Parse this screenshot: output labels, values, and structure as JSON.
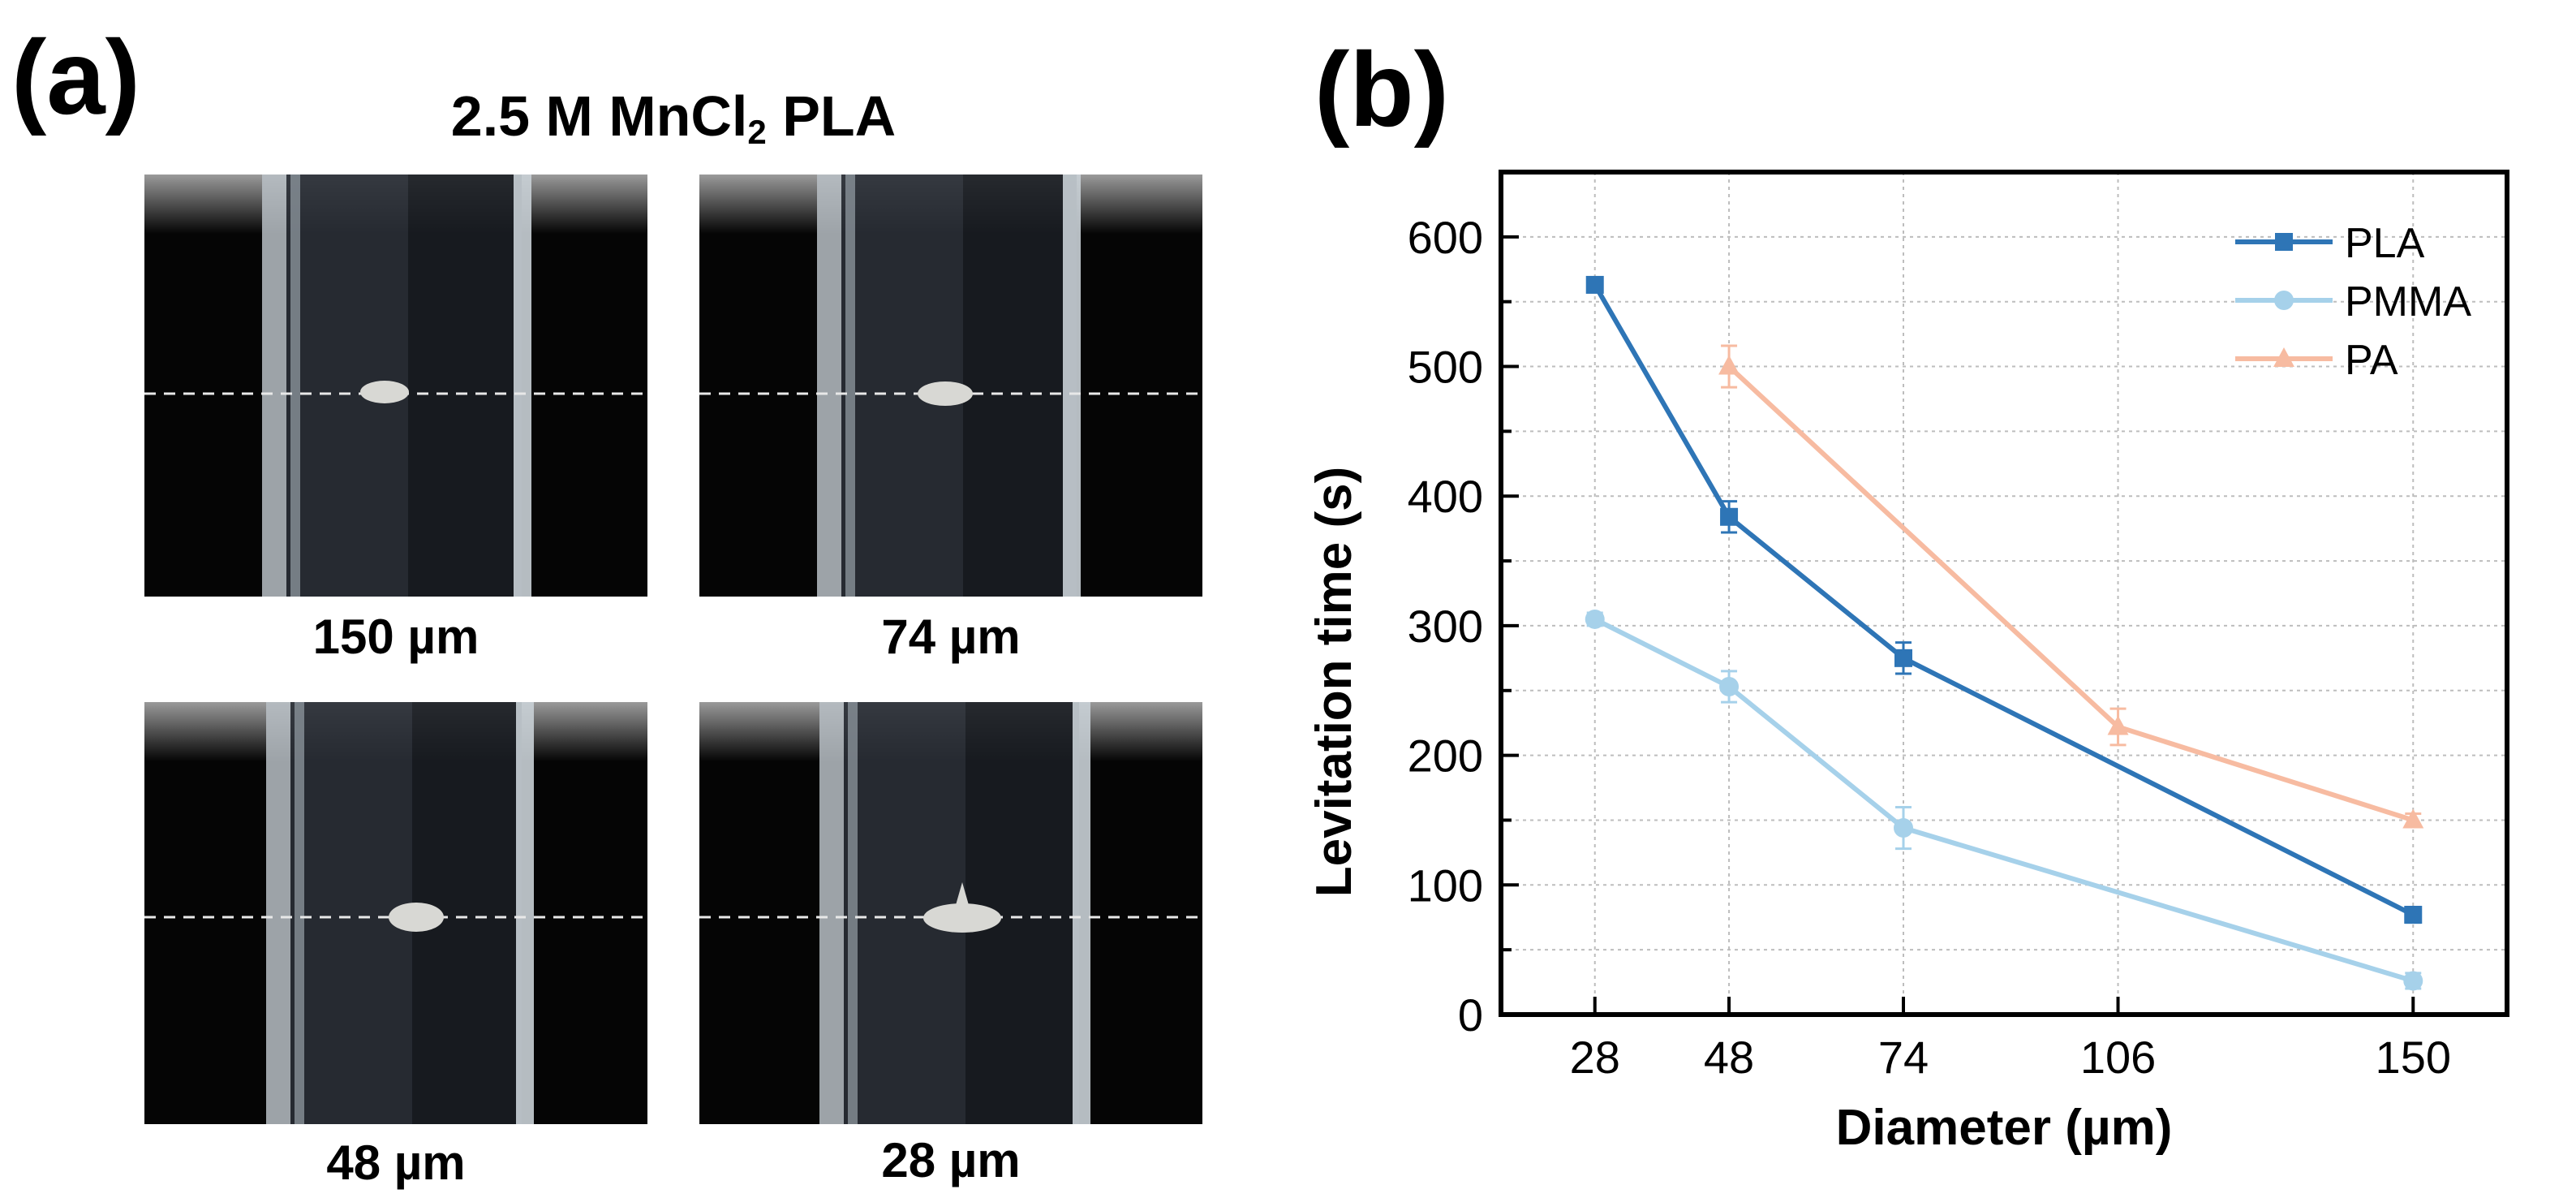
{
  "panel_a": {
    "label": "(a)",
    "title_main": "2.5 M MnCl",
    "title_sub": "2",
    "title_tail": " PLA",
    "photos": [
      {
        "caption": "150 µm"
      },
      {
        "caption": "74 µm"
      },
      {
        "caption": "48 µm"
      },
      {
        "caption": "28 µm"
      }
    ]
  },
  "panel_b": {
    "label": "(b)"
  },
  "colors": {
    "PLA": "#2e75b6",
    "PMMA": "#a6d1ea",
    "PA": "#f7bba1"
  },
  "chart_data": {
    "type": "line",
    "title": "",
    "xlabel": "Diameter (µm)",
    "ylabel": "Levitation time (s)",
    "xlim": [
      14,
      164
    ],
    "ylim": [
      0,
      650
    ],
    "x_ticks": [
      28,
      48,
      74,
      106,
      150
    ],
    "y_ticks": [
      0,
      100,
      200,
      300,
      400,
      500,
      600
    ],
    "grid": true,
    "legend_position": "top-right",
    "series": [
      {
        "name": "PLA",
        "marker": "square",
        "color": "#2e75b6",
        "x": [
          28,
          48,
          74,
          150
        ],
        "y": [
          563,
          384,
          275,
          77
        ],
        "err": [
          5,
          12,
          12,
          6
        ]
      },
      {
        "name": "PMMA",
        "marker": "circle",
        "color": "#a6d1ea",
        "x": [
          28,
          48,
          74,
          150
        ],
        "y": [
          305,
          253,
          144,
          26
        ],
        "err": [
          5,
          12,
          16,
          6
        ]
      },
      {
        "name": "PA",
        "marker": "triangle",
        "color": "#f7bba1",
        "x": [
          48,
          106,
          150
        ],
        "y": [
          500,
          222,
          150
        ],
        "err": [
          16,
          14,
          5
        ]
      }
    ]
  }
}
